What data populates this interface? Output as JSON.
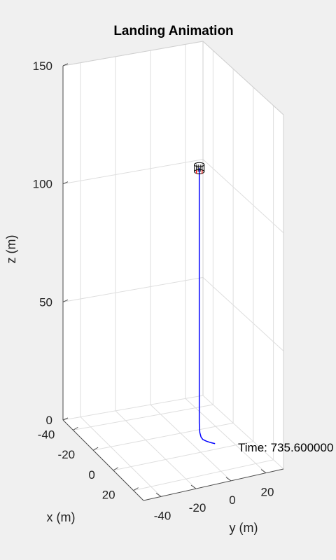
{
  "chart_data": {
    "type": "line3d",
    "title": "Landing Animation",
    "xlabel": "x (m)",
    "ylabel": "y (m)",
    "zlabel": "z (m)",
    "xlim": [
      -50,
      30
    ],
    "ylim": [
      -50,
      30
    ],
    "zlim": [
      0,
      150
    ],
    "xticks": [
      -40,
      -20,
      0,
      20
    ],
    "yticks": [
      -40,
      -20,
      0,
      20
    ],
    "zticks": [
      0,
      50,
      100,
      150
    ],
    "grid": true,
    "annotation": "Time: 735.600000",
    "series": [
      {
        "name": "trajectory",
        "color": "#0000ff",
        "points": [
          [
            -5,
            2,
            118
          ],
          [
            -5,
            2,
            80
          ],
          [
            -5,
            2,
            40
          ],
          [
            -5,
            2,
            15
          ],
          [
            -5,
            2,
            10
          ],
          [
            -5,
            2.3,
            6
          ],
          [
            -5,
            3,
            4
          ],
          [
            -5,
            4,
            2.8
          ],
          [
            -5,
            6,
            1.8
          ],
          [
            -5,
            8.5,
            0.8
          ],
          [
            -5,
            11,
            0
          ]
        ]
      }
    ],
    "vehicle": {
      "x": -5,
      "y": 2,
      "z": 118,
      "color": "#000000",
      "accent": "#ff0000"
    }
  }
}
